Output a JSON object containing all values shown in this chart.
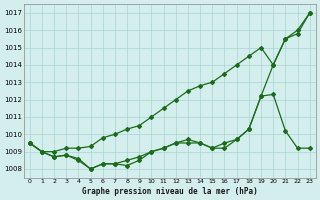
{
  "title": "Graphe pression niveau de la mer (hPa)",
  "bg_color": "#d4eeed",
  "grid_color": "#a8d4d4",
  "line_color": "#1a6b1a",
  "xlim": [
    -0.5,
    23.5
  ],
  "ylim_min": 1007.5,
  "ylim_max": 1017.5,
  "yticks": [
    1008,
    1009,
    1010,
    1011,
    1012,
    1013,
    1014,
    1015,
    1016,
    1017
  ],
  "series_top": [
    1009.5,
    1009.0,
    1009.0,
    1009.2,
    1009.2,
    1009.3,
    1009.8,
    1010.0,
    1010.3,
    1010.5,
    1011.0,
    1011.5,
    1012.0,
    1012.5,
    1012.8,
    1013.0,
    1013.5,
    1014.0,
    1014.5,
    1015.0,
    1014.0,
    1015.5,
    1016.0,
    1017.0
  ],
  "series_mid": [
    1009.5,
    1009.0,
    1008.7,
    1008.8,
    1008.6,
    1008.0,
    1008.3,
    1008.3,
    1008.5,
    1008.7,
    1009.0,
    1009.2,
    1009.5,
    1009.7,
    1009.5,
    1009.2,
    1009.5,
    1009.7,
    1010.3,
    1012.2,
    1014.0,
    1015.5,
    1015.8,
    1017.0
  ],
  "series_bot": [
    1009.5,
    1009.0,
    1008.7,
    1008.8,
    1008.5,
    1008.0,
    1008.3,
    1008.3,
    1008.2,
    1008.5,
    1009.0,
    1009.2,
    1009.5,
    1009.5,
    1009.5,
    1009.2,
    1009.2,
    1009.7,
    1010.3,
    1012.2,
    1012.3,
    1010.2,
    1009.2,
    1009.2
  ]
}
